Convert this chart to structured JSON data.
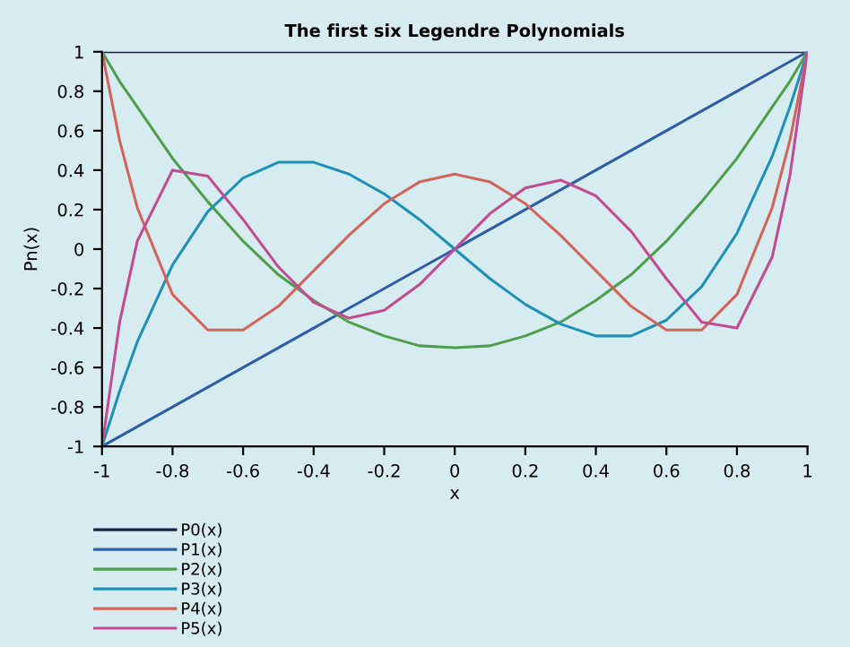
{
  "chart_data": {
    "type": "line",
    "title": "The first six Legendre Polynomials",
    "xlabel": "x",
    "ylabel": "Pn(x)",
    "x": [
      -1,
      -0.95,
      -0.9,
      -0.8,
      -0.7,
      -0.6,
      -0.5,
      -0.4,
      -0.3,
      -0.2,
      -0.1,
      0,
      0.1,
      0.2,
      0.3,
      0.4,
      0.5,
      0.6,
      0.7,
      0.8,
      0.9,
      0.95,
      1
    ],
    "series": [
      {
        "name": "P0(x)",
        "color": "#1c2240",
        "values": [
          1,
          1,
          1,
          1,
          1,
          1,
          1,
          1,
          1,
          1,
          1,
          1,
          1,
          1,
          1,
          1,
          1,
          1,
          1,
          1,
          1,
          1,
          1
        ]
      },
      {
        "name": "P1(x)",
        "color": "#2e5ea8",
        "values": [
          -1,
          -0.95,
          -0.9,
          -0.8,
          -0.7,
          -0.6,
          -0.5,
          -0.4,
          -0.3,
          -0.2,
          -0.1,
          0,
          0.1,
          0.2,
          0.3,
          0.4,
          0.5,
          0.6,
          0.7,
          0.8,
          0.9,
          0.95,
          1
        ]
      },
      {
        "name": "P2(x)",
        "color": "#4f9e4c",
        "values": [
          1,
          0.85,
          0.72,
          0.46,
          0.24,
          0.04,
          -0.13,
          -0.26,
          -0.37,
          -0.44,
          -0.49,
          -0.5,
          -0.49,
          -0.44,
          -0.37,
          -0.26,
          -0.13,
          0.04,
          0.24,
          0.46,
          0.72,
          0.85,
          1
        ]
      },
      {
        "name": "P3(x)",
        "color": "#2190b8",
        "values": [
          -1,
          -0.72,
          -0.47,
          -0.08,
          0.19,
          0.36,
          0.44,
          0.44,
          0.38,
          0.28,
          0.15,
          0,
          -0.15,
          -0.28,
          -0.38,
          -0.44,
          -0.44,
          -0.36,
          -0.19,
          0.08,
          0.47,
          0.72,
          1
        ]
      },
      {
        "name": "P4(x)",
        "color": "#d2645c",
        "values": [
          1,
          0.55,
          0.21,
          -0.23,
          -0.41,
          -0.41,
          -0.29,
          -0.11,
          0.07,
          0.23,
          0.34,
          0.38,
          0.34,
          0.23,
          0.07,
          -0.11,
          -0.29,
          -0.41,
          -0.41,
          -0.23,
          0.21,
          0.55,
          1
        ]
      },
      {
        "name": "P5(x)",
        "color": "#c24c92",
        "values": [
          -1,
          -0.37,
          0.04,
          0.4,
          0.37,
          0.15,
          -0.09,
          -0.27,
          -0.35,
          -0.31,
          -0.18,
          0,
          0.18,
          0.31,
          0.35,
          0.27,
          0.09,
          -0.15,
          -0.37,
          -0.4,
          -0.04,
          0.37,
          1
        ]
      }
    ],
    "xlim": [
      -1,
      1
    ],
    "ylim": [
      -1,
      1
    ],
    "xticks": [
      -1,
      -0.8,
      -0.6,
      -0.4,
      -0.2,
      0,
      0.2,
      0.4,
      0.6,
      0.8,
      1
    ],
    "yticks": [
      -1,
      -0.8,
      -0.6,
      -0.4,
      -0.2,
      0,
      0.2,
      0.4,
      0.6,
      0.8,
      1
    ],
    "grid": false,
    "legend": "bottom left",
    "marker": "none",
    "line_style": "solid"
  }
}
